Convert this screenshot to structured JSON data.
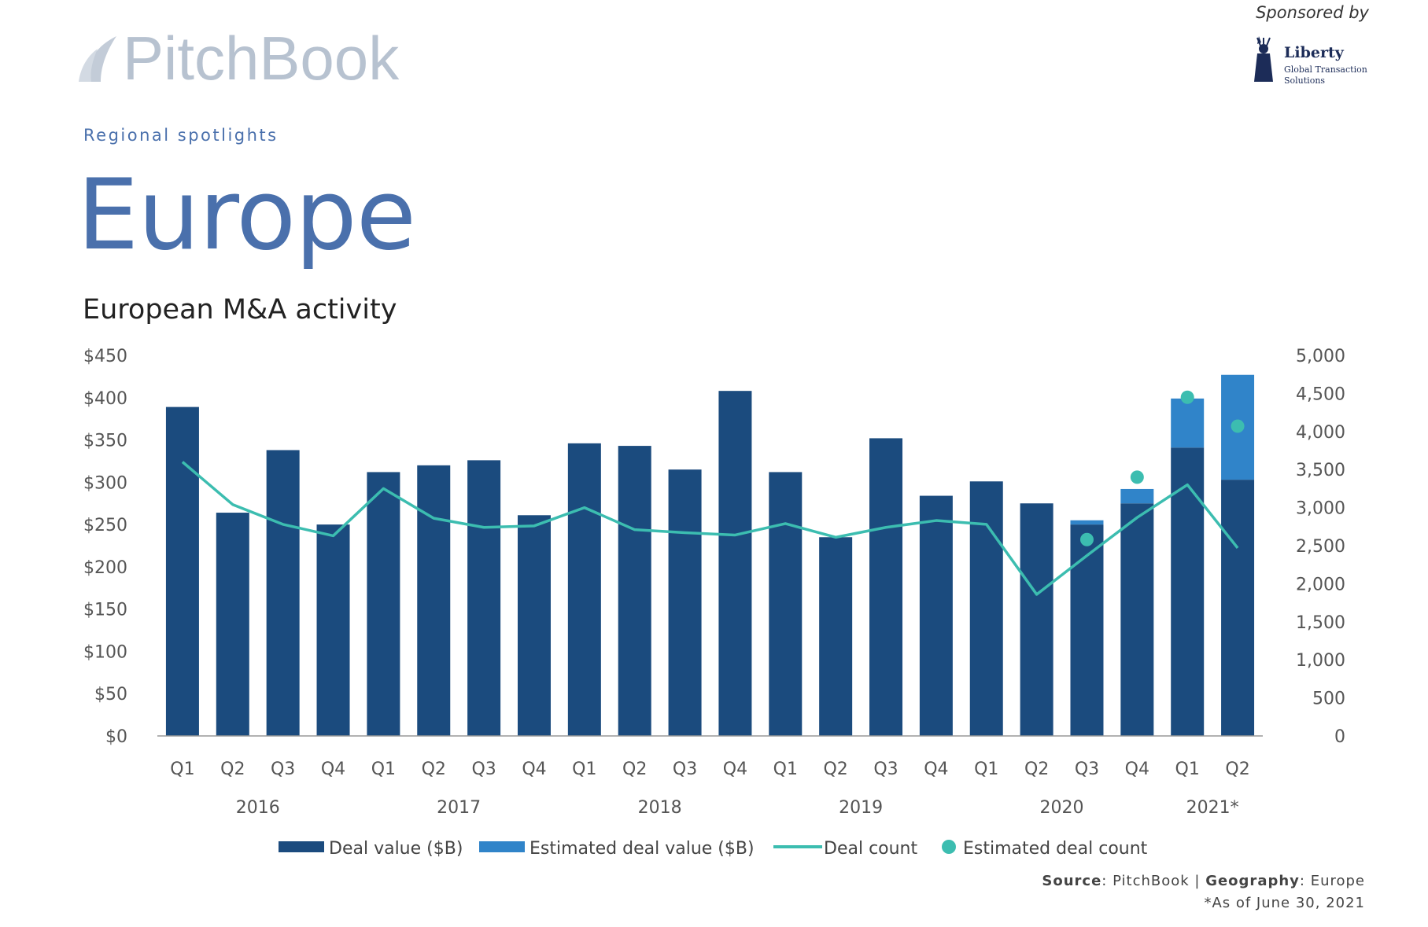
{
  "brand": {
    "logo_text": "PitchBook",
    "sponsor_label": "Sponsored by",
    "sponsor_name": "Liberty",
    "sponsor_sub1": "Global Transaction",
    "sponsor_sub2": "Solutions"
  },
  "header": {
    "section_label": "Regional spotlights",
    "page_title": "Europe"
  },
  "chart_title": "European M&A activity",
  "colors": {
    "deal_value": "#1b4b7e",
    "estimated_deal_value": "#3084c9",
    "deal_count": "#3cbdb0",
    "estimated_deal_count": "#3cbdb0",
    "title_blue": "#4a70ac"
  },
  "chart_data": {
    "type": "bar",
    "title": "European M&A activity",
    "categories": [
      "Q1",
      "Q2",
      "Q3",
      "Q4",
      "Q1",
      "Q2",
      "Q3",
      "Q4",
      "Q1",
      "Q2",
      "Q3",
      "Q4",
      "Q1",
      "Q2",
      "Q3",
      "Q4",
      "Q1",
      "Q2",
      "Q3",
      "Q4",
      "Q1",
      "Q2"
    ],
    "years": [
      "2016",
      "2016",
      "2016",
      "2016",
      "2017",
      "2017",
      "2017",
      "2017",
      "2018",
      "2018",
      "2018",
      "2018",
      "2019",
      "2019",
      "2019",
      "2019",
      "2020",
      "2020",
      "2020",
      "2020",
      "2021*",
      "2021*"
    ],
    "year_labels": [
      "2016",
      "2017",
      "2018",
      "2019",
      "2020",
      "2021*"
    ],
    "y_left": {
      "label": "",
      "ylim": [
        0,
        450
      ],
      "ticks": [
        "$0",
        "$50",
        "$100",
        "$150",
        "$200",
        "$250",
        "$300",
        "$350",
        "$400",
        "$450"
      ],
      "tick_values": [
        0,
        50,
        100,
        150,
        200,
        250,
        300,
        350,
        400,
        450
      ]
    },
    "y_right": {
      "label": "",
      "ylim": [
        0,
        5000
      ],
      "ticks": [
        "0",
        "500",
        "1,000",
        "1,500",
        "2,000",
        "2,500",
        "3,000",
        "3,500",
        "4,000",
        "4,500",
        "5,000"
      ],
      "tick_values": [
        0,
        500,
        1000,
        1500,
        2000,
        2500,
        3000,
        3500,
        4000,
        4500,
        5000
      ]
    },
    "series": [
      {
        "name": "Deal value ($B)",
        "type": "bar",
        "axis": "left",
        "values": [
          389,
          264,
          338,
          250,
          312,
          320,
          326,
          261,
          346,
          343,
          315,
          408,
          312,
          235,
          352,
          284,
          301,
          275,
          250,
          275,
          341,
          303
        ]
      },
      {
        "name": "Estimated deal value ($B)",
        "type": "bar-stacked",
        "axis": "left",
        "values": [
          0,
          0,
          0,
          0,
          0,
          0,
          0,
          0,
          0,
          0,
          0,
          0,
          0,
          0,
          0,
          0,
          0,
          0,
          5,
          17,
          58,
          124
        ]
      },
      {
        "name": "Deal count",
        "type": "line",
        "axis": "right",
        "values": [
          3600,
          3040,
          2780,
          2630,
          3250,
          2860,
          2740,
          2760,
          3000,
          2710,
          2670,
          2640,
          2790,
          2610,
          2740,
          2830,
          2780,
          1860,
          2370,
          2870,
          3300,
          2470
        ]
      },
      {
        "name": "Estimated deal count",
        "type": "scatter",
        "axis": "right",
        "values": [
          null,
          null,
          null,
          null,
          null,
          null,
          null,
          null,
          null,
          null,
          null,
          null,
          null,
          null,
          null,
          null,
          null,
          null,
          2580,
          3400,
          4450,
          4070
        ]
      }
    ],
    "legend": {
      "placement": "bottom"
    },
    "grid": false
  },
  "footer": {
    "source_label": "Source",
    "source_value": ": PitchBook | ",
    "geo_label": "Geography",
    "geo_value": ": Europe",
    "footnote": "*As of June 30, 2021"
  }
}
